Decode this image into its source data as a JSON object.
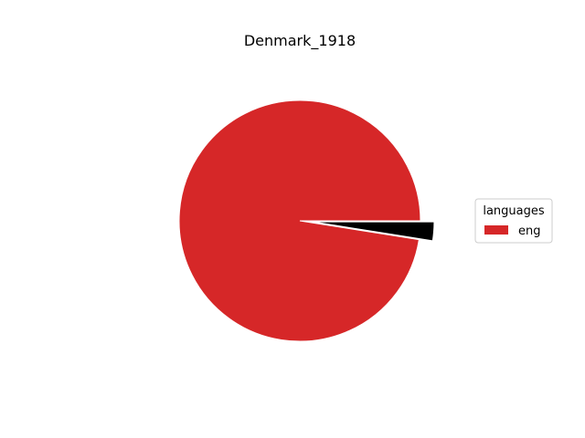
{
  "chart_data": {
    "type": "pie",
    "title": "Denmark_1918",
    "legend": {
      "title": "languages",
      "placement": "center-right",
      "entries": [
        "eng"
      ]
    },
    "slices": [
      {
        "label": "eng",
        "value": 97.5,
        "color": "#d62728",
        "exploded": false
      },
      {
        "label": "",
        "value": 2.5,
        "color": "#000000",
        "exploded": true
      }
    ],
    "start_angle_deg": 0,
    "direction": "counterclockwise"
  }
}
